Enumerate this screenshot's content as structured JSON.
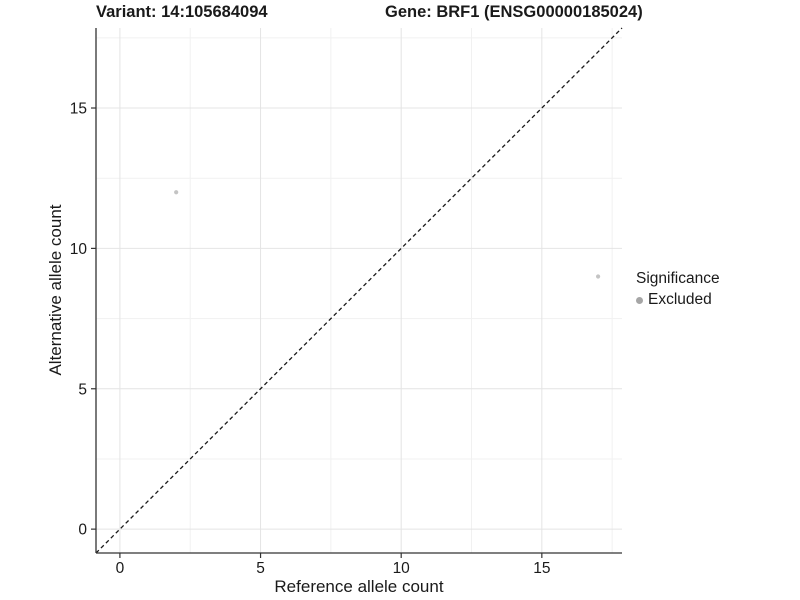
{
  "chart_data": {
    "type": "scatter",
    "title_left": "Variant: 14:105684094",
    "title_right": "Gene: BRF1 (ENSG00000185024)",
    "xlabel": "Reference allele count",
    "ylabel": "Alternative allele count",
    "xlim": [
      -0.85,
      17.85
    ],
    "ylim": [
      -0.85,
      17.85
    ],
    "x_ticks": [
      0,
      5,
      10,
      15
    ],
    "y_ticks": [
      0,
      5,
      10,
      15
    ],
    "x_minor_ticks": [
      2.5,
      7.5,
      12.5,
      17.5
    ],
    "y_minor_ticks": [
      2.5,
      7.5,
      12.5,
      17.5
    ],
    "grid": true,
    "reference_line": {
      "type": "identity",
      "slope": 1,
      "intercept": 0,
      "style": "dashed"
    },
    "series": [
      {
        "name": "Excluded",
        "color": "#c4c4c4",
        "points": [
          {
            "x": 2,
            "y": 12
          },
          {
            "x": 17,
            "y": 9
          }
        ]
      }
    ],
    "legend": {
      "title": "Significance",
      "position": "right",
      "entries": [
        {
          "label": "Excluded",
          "color": "#a6a6a6"
        }
      ]
    },
    "colors": {
      "background": "#ffffff",
      "grid_major": "#e4e4e4",
      "grid_minor": "#f1f1f1",
      "axis_line": "#333333",
      "tick_mark": "#333333",
      "text": "#1a1a1a",
      "reference_line": "#1a1a1a"
    }
  }
}
